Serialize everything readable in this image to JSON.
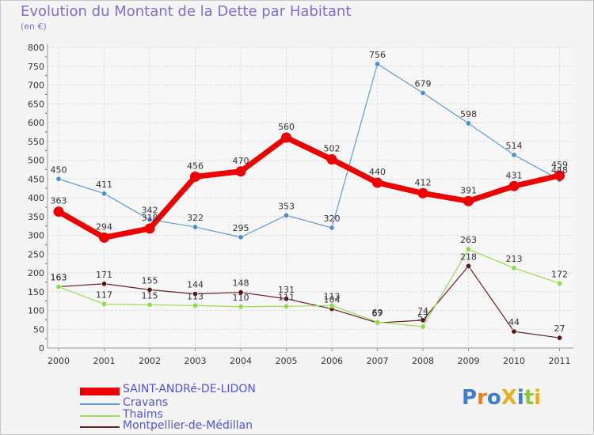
{
  "title": "Evolution du Montant de la Dette par Habitant",
  "unit_label": "(en €)",
  "chart_data": {
    "type": "line",
    "title": "Evolution du Montant de la Dette par Habitant",
    "ylabel": "(en €)",
    "xlabel": "",
    "ylim": [
      0,
      800
    ],
    "y_ticks": [
      0,
      50,
      100,
      150,
      200,
      250,
      300,
      350,
      400,
      450,
      500,
      550,
      600,
      650,
      700,
      750,
      800
    ],
    "x": [
      "2000",
      "2001",
      "2002",
      "2003",
      "2004",
      "2005",
      "2006",
      "2007",
      "2008",
      "2009",
      "2010",
      "2011"
    ],
    "grid": true,
    "legend_position": "bottom-left",
    "series": [
      {
        "name": "SAINT-ANDRé-DE-LIDON",
        "color": "#ee0000",
        "values": [
          363,
          294,
          318,
          456,
          470,
          560,
          502,
          440,
          412,
          391,
          431,
          459
        ],
        "labels": [
          "363",
          "294",
          "318",
          "456",
          "470",
          "560",
          "502",
          "440",
          "412",
          "391",
          "431",
          "459"
        ]
      },
      {
        "name": "Cravans",
        "color": "#5b9bd5",
        "values": [
          450,
          411,
          342,
          322,
          295,
          353,
          320,
          756,
          679,
          598,
          514,
          448
        ],
        "labels": [
          "450",
          "411",
          "342",
          "322",
          "295",
          "353",
          "320",
          "756",
          "679",
          "598",
          "514",
          "448"
        ]
      },
      {
        "name": "Thaims",
        "color": "#99dd55",
        "values": [
          163,
          117,
          115,
          113,
          110,
          111,
          113,
          69,
          57,
          263,
          213,
          172
        ],
        "labels": [
          "163",
          "117",
          "115",
          "113",
          "110",
          "111",
          "113",
          "69",
          "57",
          "263",
          "213",
          "172"
        ]
      },
      {
        "name": "Montpellier-de-Médillan",
        "color": "#6b1f1f",
        "values": [
          163,
          171,
          155,
          144,
          148,
          131,
          104,
          67,
          74,
          218,
          44,
          27
        ],
        "labels": [
          "163",
          "171",
          "155",
          "144",
          "148",
          "131",
          "104",
          "67",
          "74",
          "218",
          "44",
          "27"
        ]
      }
    ]
  },
  "logo": {
    "text": "ProXiti",
    "letter_colors": [
      "#3a7fd0",
      "#f07d1e",
      "#3a7fd0",
      "#e8b020",
      "#3a7fd0",
      "#8cc63f",
      "#e8b020"
    ]
  }
}
